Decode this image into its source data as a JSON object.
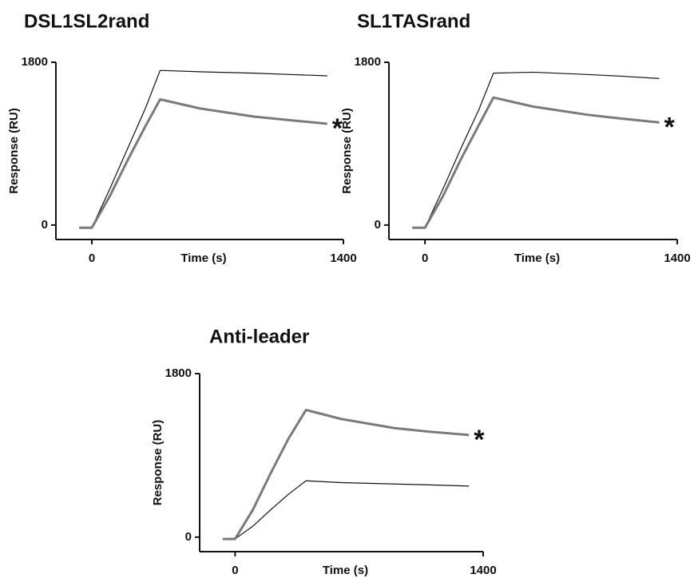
{
  "chart_data": [
    {
      "type": "line",
      "title": "DSL1SL2rand",
      "x_label": "Time (s)",
      "y_label": "Response (RU)",
      "x": [
        -70,
        0,
        100,
        200,
        300,
        380,
        600,
        900,
        1100,
        1310
      ],
      "series": [
        {
          "color": "#111111",
          "values": [
            -30,
            -30,
            400,
            850,
            1300,
            1710,
            1695,
            1680,
            1665,
            1650
          ]
        },
        {
          "color": "#7a7a7a",
          "values": [
            -30,
            -30,
            320,
            720,
            1100,
            1390,
            1290,
            1200,
            1160,
            1120
          ]
        }
      ],
      "annotation": "*",
      "xlim": [
        -200,
        1400
      ],
      "ylim": [
        -160,
        1800
      ],
      "xticks": [
        0,
        1400
      ],
      "yticks": [
        0,
        1800
      ]
    },
    {
      "type": "line",
      "title": "SL1TASrand",
      "x_label": "Time (s)",
      "y_label": "Response (RU)",
      "x": [
        -70,
        0,
        100,
        200,
        300,
        380,
        600,
        900,
        1100,
        1300
      ],
      "series": [
        {
          "color": "#111111",
          "values": [
            -30,
            -30,
            400,
            850,
            1280,
            1680,
            1690,
            1665,
            1645,
            1620
          ]
        },
        {
          "color": "#7a7a7a",
          "values": [
            -30,
            -30,
            320,
            730,
            1110,
            1410,
            1310,
            1220,
            1175,
            1135
          ]
        }
      ],
      "annotation": "*",
      "xlim": [
        -200,
        1400
      ],
      "ylim": [
        -160,
        1800
      ],
      "xticks": [
        0,
        1400
      ],
      "yticks": [
        0,
        1800
      ]
    },
    {
      "type": "line",
      "title": "Anti-leader",
      "x_label": "Time (s)",
      "y_label": "Response (RU)",
      "x": [
        -70,
        0,
        100,
        200,
        300,
        400,
        600,
        900,
        1100,
        1320
      ],
      "series": [
        {
          "color": "#111111",
          "values": [
            -20,
            -20,
            120,
            300,
            470,
            620,
            600,
            585,
            575,
            562
          ]
        },
        {
          "color": "#7a7a7a",
          "values": [
            -20,
            -20,
            300,
            700,
            1080,
            1400,
            1300,
            1200,
            1160,
            1124
          ]
        }
      ],
      "annotation": "*",
      "xlim": [
        -200,
        1400
      ],
      "ylim": [
        -160,
        1800
      ],
      "xticks": [
        0,
        1400
      ],
      "yticks": [
        0,
        1800
      ]
    }
  ]
}
